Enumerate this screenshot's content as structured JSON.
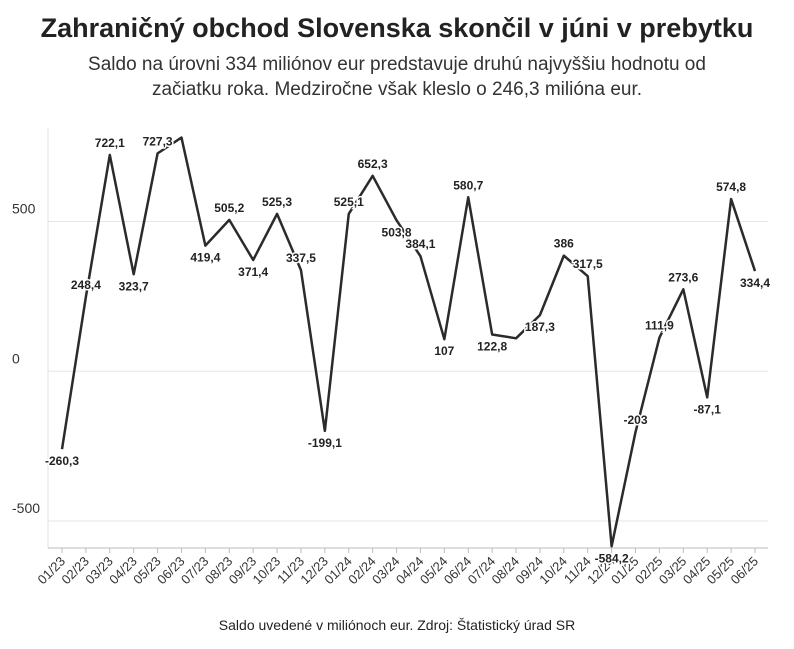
{
  "chart_data": {
    "type": "line",
    "title": "Zahraničný obchod Slovenska skončil v júni v prebytku",
    "subtitle": [
      "Saldo na úrovni 334 miliónov eur predstavuje druhú najvyššiu hodnotu od",
      "začiatku roka. Medziročne však kleslo o 246,3 milióna eur."
    ],
    "source": "Saldo uvedené v miliónoch eur. Zdroj: Štatistický úrad SR",
    "categories": [
      "01/23",
      "02/23",
      "03/23",
      "04/23",
      "05/23",
      "06/23",
      "07/23",
      "08/23",
      "09/23",
      "10/23",
      "11/23",
      "12/23",
      "01/24",
      "02/24",
      "03/24",
      "04/24",
      "05/24",
      "06/24",
      "07/24",
      "08/24",
      "09/24",
      "10/24",
      "11/24",
      "12/24",
      "01/25",
      "02/25",
      "03/25",
      "04/25",
      "05/25",
      "06/25"
    ],
    "series": [
      {
        "name": "Saldo",
        "color": "#2b2b2b",
        "values": [
          -260.3,
          248.4,
          722.1,
          323.7,
          727.3,
          780,
          419.4,
          505.2,
          371.4,
          525.3,
          337.5,
          -199.1,
          525.1,
          652.3,
          503.8,
          384.1,
          107,
          580.7,
          122.8,
          110,
          187.3,
          386,
          317.5,
          -584.2,
          -203,
          111.9,
          273.6,
          -87.1,
          574.8,
          334.4
        ],
        "value_labels": [
          "-260,3",
          "248,4",
          "722,1",
          "323,7",
          "727,3",
          null,
          "419,4",
          "505,2",
          "371,4",
          "525,3",
          "337,5",
          "-199,1",
          "525,1",
          "652,3",
          "503,8",
          "384,1",
          "107",
          "580,7",
          "122,8",
          null,
          "187,3",
          "386",
          "317,5",
          "-584,2",
          "-203",
          "111,9",
          "273,6",
          "-87,1",
          "574,8",
          "334,4"
        ]
      }
    ],
    "ylim": [
      -590,
      812
    ],
    "yticks": [
      -500,
      0,
      500
    ],
    "grid": true
  }
}
